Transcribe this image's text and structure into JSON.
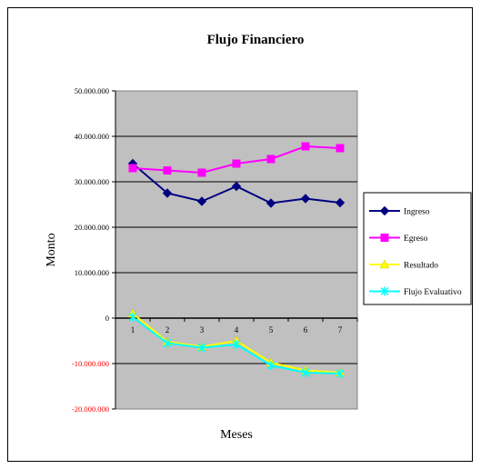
{
  "chart_data": {
    "type": "line",
    "title": "Flujo Financiero",
    "xlabel": "Meses",
    "ylabel": "Monto",
    "x": [
      "1",
      "2",
      "3",
      "4",
      "5",
      "6",
      "7"
    ],
    "ylim": [
      -20000000,
      50000000
    ],
    "yticks": [
      50000000,
      40000000,
      30000000,
      20000000,
      10000000,
      0,
      -10000000,
      -20000000
    ],
    "ytick_labels": [
      "50.000.000",
      "40.000.000",
      "30.000.000",
      "20.000.000",
      "10.000.000",
      "0",
      "-10.000.000",
      "-20.000.000"
    ],
    "grid": "horizontal",
    "plot_background": "#c0c0c0",
    "legend_position": "right",
    "series": [
      {
        "name": "Ingreso",
        "color": "#000080",
        "marker": "diamond",
        "values": [
          34000000,
          27500000,
          25700000,
          29000000,
          25300000,
          26300000,
          25400000
        ]
      },
      {
        "name": "Egreso",
        "color": "#ff00ff",
        "marker": "square",
        "values": [
          33000000,
          32500000,
          32000000,
          34000000,
          35000000,
          37800000,
          37400000
        ]
      },
      {
        "name": "Resultado",
        "color": "#ffff00",
        "marker": "triangle",
        "values": [
          1000000,
          -5200000,
          -6300000,
          -5000000,
          -9800000,
          -11500000,
          -12000000
        ]
      },
      {
        "name": "Flujo Evaluativo",
        "color": "#00ffff",
        "marker": "star",
        "values": [
          200000,
          -5500000,
          -6500000,
          -5800000,
          -10400000,
          -12000000,
          -12200000
        ]
      }
    ]
  }
}
